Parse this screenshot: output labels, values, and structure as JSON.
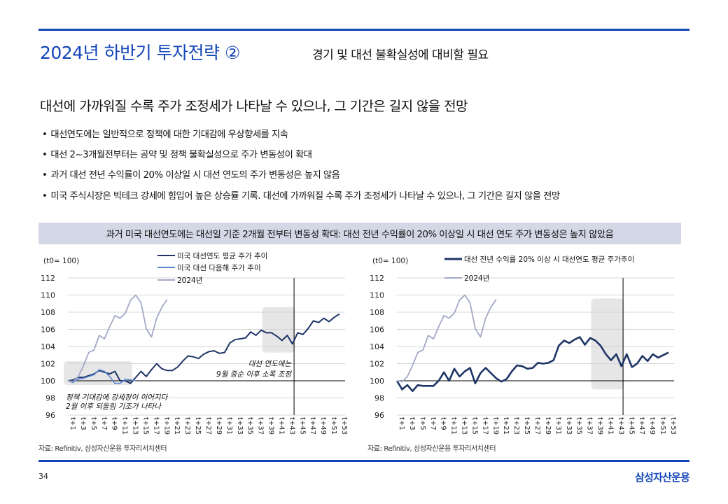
{
  "header": {
    "title": "2024년 하반기 투자전략 ②",
    "subtitle": "경기 및 대선 불확실성에 대비할 필요"
  },
  "headline": "대선에 가까워질 수록 주가 조정세가 나타날 수 있으나, 그 기간은 길지 않을 전망",
  "bullets": [
    "대선연도에는 일반적으로 정책에 대한 기대감에 우상향세를 지속",
    "대선 2~3개월전부터는 공약 및 정책 불확실성으로 주가 변동성이 확대",
    "과거 대선 전년 수익률이 20% 이상일 시 대선 연도의 주가 변동성은 높지 않음",
    "미국 주식시장은 빅테크 강세에 힘입어 높은 상승률 기록. 대선에 가까워질 수록 주가 조정세가 나타날 수 있으나, 그 기간은 길지 않을 전망"
  ],
  "bullet_symbol": "•",
  "banner": "과거 미국 대선연도에는 대선일 기준 2개월 전부터 변동성 확대: 대선 전년 수익률이 20% 이상일 시 대선 연도 주가 변동성은 높지 않았음",
  "chart_data": [
    {
      "type": "line",
      "unit_label": "(t0= 100)",
      "ylim": [
        96,
        112
      ],
      "yticks": [
        96,
        98,
        100,
        102,
        104,
        106,
        108,
        110,
        112
      ],
      "xtick_labels": [
        "t+1",
        "t+3",
        "t+5",
        "t+7",
        "t+9",
        "t+11",
        "t+13",
        "t+15",
        "t+17",
        "t+19",
        "t+21",
        "t+23",
        "t+25",
        "t+27",
        "t+29",
        "t+31",
        "t+33",
        "t+35",
        "t+37",
        "t+39",
        "t+41",
        "t+43",
        "t+45",
        "t+47",
        "t+49",
        "t+51",
        "t+53"
      ],
      "series": [
        {
          "name": "미국 대선연도 평균 주가 추이",
          "color": "#1f3566",
          "width": 2,
          "values": [
            100,
            100.1,
            100.4,
            100.4,
            100.6,
            100.8,
            101.2,
            101.0,
            100.8,
            101.1,
            100.0,
            100.0,
            99.7,
            100.4,
            101.1,
            100.5,
            101.3,
            102.0,
            101.4,
            101.2,
            101.2,
            101.6,
            102.3,
            102.9,
            102.8,
            102.6,
            103.1,
            103.4,
            103.5,
            103.2,
            103.3,
            104.4,
            104.8,
            104.9,
            105.0,
            105.7,
            105.3,
            105.9,
            105.6,
            105.6,
            105.2,
            104.7,
            105.3,
            104.3,
            105.6,
            105.4,
            106.1,
            107.0,
            106.8,
            107.3,
            106.9,
            107.4,
            107.8
          ]
        },
        {
          "name": "미국 대선 다음해 주가 추이",
          "color": "#5b86d0",
          "width": 1.6,
          "values": [
            100,
            99.8,
            100.2,
            100.3,
            100.5,
            100.7,
            101.3,
            101.1,
            100.5,
            99.7,
            99.7,
            100.2,
            100.1,
            100.0
          ]
        },
        {
          "name": "2024년",
          "color": "#a2a8c6",
          "width": 1.8,
          "values": [
            100,
            99.9,
            100.5,
            101.8,
            103.3,
            103.6,
            105.3,
            104.9,
            106.3,
            107.6,
            107.3,
            107.9,
            109.4,
            110.0,
            109.1,
            106.1,
            105.1,
            107.3,
            108.6,
            109.5
          ]
        }
      ],
      "annotations": [
        {
          "lines": [
            "정책 기대감에 강세장이 이어지다",
            "2월 이후 되돌림 기조가 나타나"
          ]
        },
        {
          "lines": [
            "대선 연도에는",
            "9월 중순 이후 소폭  조정"
          ]
        }
      ],
      "shaded_ranges": [
        {
          "x": [
            1,
            13
          ],
          "y": [
            99.5,
            102.3
          ]
        },
        {
          "x": [
            39,
            44.2
          ],
          "y": [
            103.3,
            108.6
          ]
        }
      ],
      "vline_at": 44.3,
      "source": "자료: Refinitiv, 삼성자산운용 투자리서치센터"
    },
    {
      "type": "line",
      "unit_label": "(t0= 100)",
      "ylim": [
        96,
        112
      ],
      "yticks": [
        96,
        98,
        100,
        102,
        104,
        106,
        108,
        110,
        112
      ],
      "xtick_labels": [
        "t+1",
        "t+3",
        "t+5",
        "t+7",
        "t+9",
        "t+11",
        "t+13",
        "t+15",
        "t+17",
        "t+19",
        "t+21",
        "t+23",
        "t+25",
        "t+27",
        "t+29",
        "t+31",
        "t+33",
        "t+35",
        "t+37",
        "t+39",
        "t+41",
        "t+43",
        "t+45",
        "t+47",
        "t+49",
        "t+51",
        "t+53"
      ],
      "series": [
        {
          "name": "대선 전년 수익률 20% 이상 시 대선연도 평균 주가추이",
          "color": "#1f3566",
          "width": 2.6,
          "values": [
            100,
            99.0,
            99.5,
            98.8,
            99.5,
            99.4,
            99.4,
            99.4,
            100.0,
            101.0,
            100.0,
            101.4,
            100.5,
            101.1,
            101.5,
            99.7,
            100.9,
            101.5,
            100.9,
            100.3,
            99.9,
            100.2,
            101.1,
            101.8,
            101.7,
            101.4,
            101.5,
            102.1,
            102.0,
            102.1,
            102.4,
            104.1,
            104.7,
            104.4,
            104.8,
            105.1,
            104.2,
            105.0,
            104.7,
            104.1,
            103.1,
            102.4,
            103.1,
            101.7,
            103.1,
            101.6,
            102.0,
            102.9,
            102.3,
            103.1,
            102.7,
            103.0,
            103.3
          ]
        },
        {
          "name": "2024년",
          "color": "#a2a8c6",
          "width": 1.8,
          "values": [
            100,
            99.9,
            100.5,
            101.8,
            103.3,
            103.6,
            105.3,
            104.9,
            106.3,
            107.6,
            107.3,
            107.9,
            109.4,
            110.0,
            109.1,
            106.1,
            105.1,
            107.3,
            108.6,
            109.5
          ]
        }
      ],
      "annotations": [],
      "shaded_ranges": [
        {
          "x": [
            39,
            44.2
          ],
          "y": [
            99,
            109.6
          ]
        }
      ],
      "vline_at": 44.3,
      "source": "자료: Refinitiv, 삼성자산운용 투자리서치센터"
    }
  ],
  "footer": {
    "page_number": "34",
    "logo": "삼성자산운용"
  }
}
